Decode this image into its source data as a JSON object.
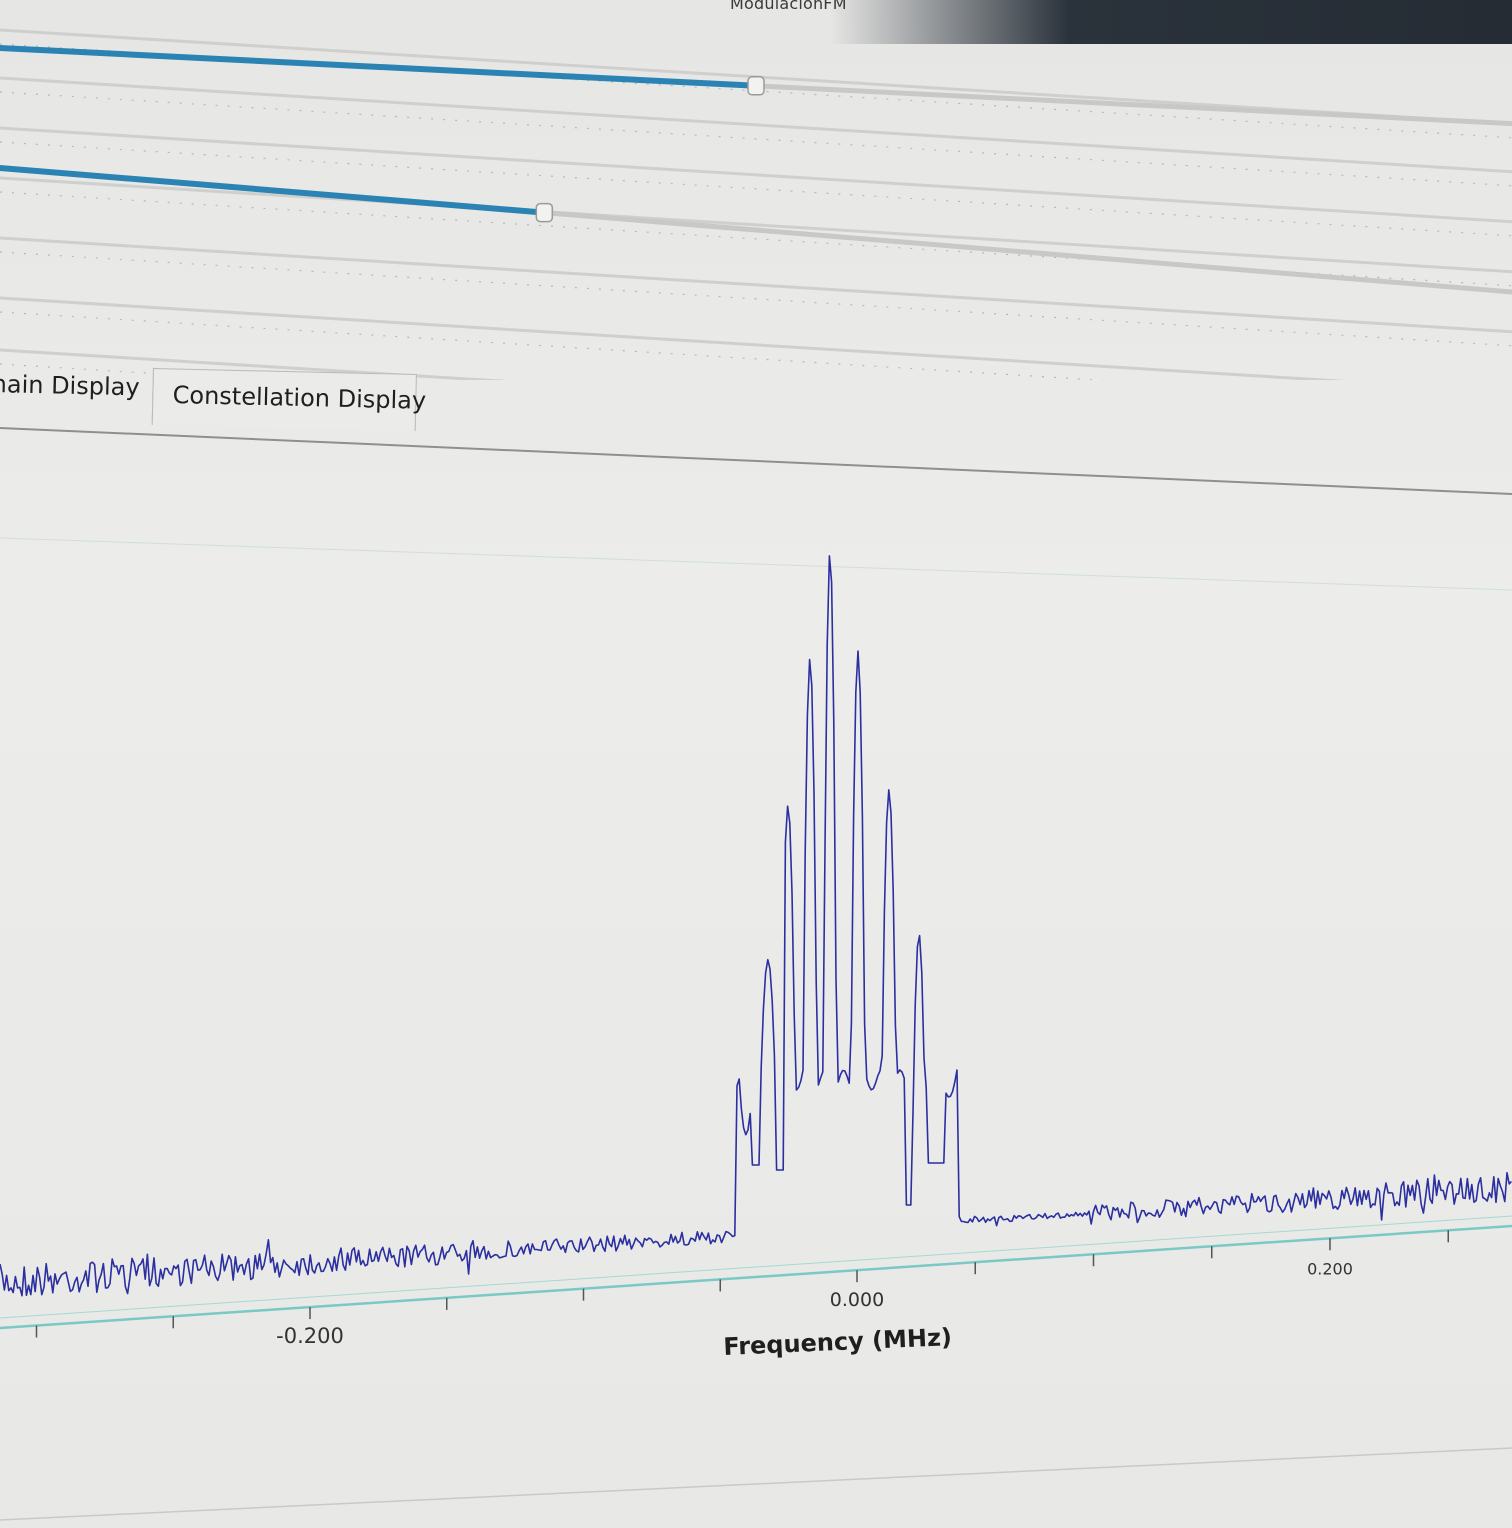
{
  "window": {
    "title": "ModulacionFM"
  },
  "sliders": [
    {
      "name": "slider-1",
      "fraction": 0.5
    },
    {
      "name": "slider-2",
      "fraction": 0.36
    }
  ],
  "tabs": [
    {
      "label": "nain Display",
      "selected": false
    },
    {
      "label": "Constellation Display",
      "selected": true
    }
  ],
  "colors": {
    "trace": "#2b2fa0",
    "slider_fill": "#2b83b4",
    "slider_track": "#c8c8c6",
    "axis_line": "#7ac9c4"
  },
  "chart_data": {
    "type": "line",
    "xlabel": "Frequency (MHz)",
    "xticks": [
      "-0.200",
      "0.000",
      "0.200"
    ],
    "xlim": [
      -0.33,
      0.28
    ],
    "description_series": "FM spectrum: discrete spectral lines around 0.000 MHz over noise floor",
    "peaks": [
      {
        "x": -0.045,
        "level": 0.12
      },
      {
        "x": -0.036,
        "level": 0.38
      },
      {
        "x": -0.027,
        "level": 0.61
      },
      {
        "x": -0.018,
        "level": 0.83
      },
      {
        "x": -0.009,
        "level": 0.99
      },
      {
        "x": 0.0,
        "level": 0.84
      },
      {
        "x": 0.009,
        "level": 0.63
      },
      {
        "x": 0.018,
        "level": 0.41
      },
      {
        "x": 0.027,
        "level": 0.16
      }
    ],
    "grid": false
  }
}
